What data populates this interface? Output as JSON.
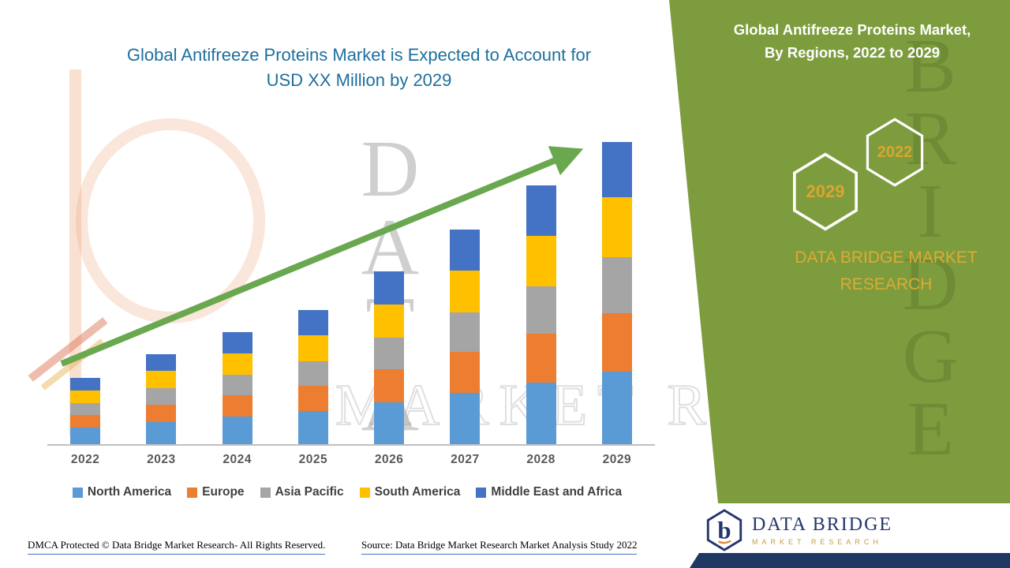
{
  "title": {
    "line1": "Global Antifreeze Proteins Market is Expected to Account for",
    "line2": "USD XX Million by 2029"
  },
  "side_panel": {
    "heading_line1": "Global Antifreeze Proteins Market,",
    "heading_line2": "By Regions, 2022 to 2029",
    "hexagon_front_label": "2029",
    "hexagon_back_label": "2022",
    "brand_line1": "DATA BRIDGE MARKET",
    "brand_line2": "RESEARCH",
    "panel_color": "#7d9c3e",
    "gold_color": "#d8a62e"
  },
  "chart_data": {
    "type": "bar",
    "stacked": true,
    "title": "Global Antifreeze Proteins Market is Expected to Account for USD XX Million by 2029",
    "categories": [
      "2022",
      "2023",
      "2024",
      "2025",
      "2026",
      "2027",
      "2028",
      "2029"
    ],
    "series": [
      {
        "name": "North America",
        "color": "#5b9bd5",
        "values": [
          21,
          28,
          35,
          42,
          53,
          65,
          78,
          92
        ]
      },
      {
        "name": "Europe",
        "color": "#ed7d31",
        "values": [
          16,
          22,
          27,
          32,
          42,
          52,
          62,
          74
        ]
      },
      {
        "name": "Asia Pacific",
        "color": "#a5a5a5",
        "values": [
          15,
          21,
          26,
          31,
          40,
          50,
          60,
          71
        ]
      },
      {
        "name": "South America",
        "color": "#ffc000",
        "values": [
          16,
          22,
          27,
          33,
          42,
          53,
          64,
          76
        ]
      },
      {
        "name": "Middle East and Africa",
        "color": "#4472c4",
        "values": [
          16,
          21,
          27,
          32,
          42,
          52,
          64,
          70
        ]
      }
    ],
    "xlabel": "",
    "ylabel": "",
    "value_note": "axis unlabeled; values are relative estimates",
    "ylim": [
      0,
      400
    ],
    "grid": false,
    "legend_position": "bottom",
    "trend_arrow": true
  },
  "watermarks": {
    "vertical_text": "DATA",
    "panel_vertical_text": "BRIDGE",
    "outline_text": "MARKET RESEARCH"
  },
  "footer": {
    "dmca_text": "DMCA Protected © Data Bridge Market Research- All Rights Reserved.",
    "source_text": "Source: Data Bridge Market Research Market Analysis Study 2022"
  },
  "logo": {
    "monogram": "b",
    "wordmark": "DATA BRIDGE",
    "tagline": "MARKET RESEARCH"
  }
}
